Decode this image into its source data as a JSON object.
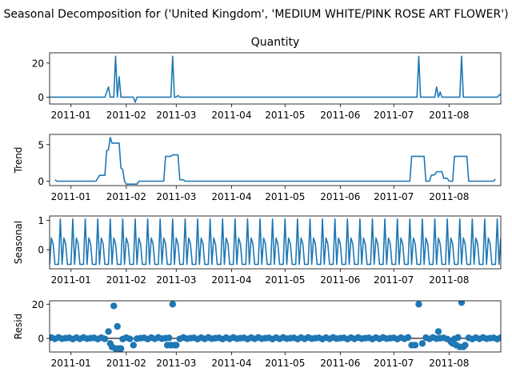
{
  "suptitle": "Seasonal Decomposition for ('United Kingdom', 'MEDIUM WHITE/PINK ROSE ART FLOWER')",
  "colors": {
    "line": "#1f77b4",
    "zero_line": "#000000",
    "frame": "#000000"
  },
  "x_ticks": [
    "2011-01",
    "2011-02",
    "2011-03",
    "2011-04",
    "2011-05",
    "2011-06",
    "2011-07",
    "2011-08"
  ],
  "chart_data": [
    {
      "type": "line",
      "title": "Quantity",
      "ylabel": "",
      "x_range": [
        "2010-12-20",
        "2011-08-30"
      ],
      "ylim": [
        -4,
        26
      ],
      "yticks": [
        "0",
        "20"
      ],
      "series": [
        {
          "values": [
            [
              "2010-12-20",
              0
            ],
            [
              "2011-01-20",
              0
            ],
            [
              "2011-01-22",
              6
            ],
            [
              "2011-01-23",
              0
            ],
            [
              "2011-01-25",
              0
            ],
            [
              "2011-01-26",
              24
            ],
            [
              "2011-01-27",
              0
            ],
            [
              "2011-01-28",
              12
            ],
            [
              "2011-01-29",
              0
            ],
            [
              "2011-02-05",
              0
            ],
            [
              "2011-02-06",
              -3
            ],
            [
              "2011-02-07",
              0
            ],
            [
              "2011-02-26",
              0
            ],
            [
              "2011-02-27",
              24
            ],
            [
              "2011-02-28",
              0
            ],
            [
              "2011-03-01",
              0
            ],
            [
              "2011-03-02",
              1
            ],
            [
              "2011-03-03",
              0
            ],
            [
              "2011-07-14",
              0
            ],
            [
              "2011-07-15",
              24
            ],
            [
              "2011-07-16",
              0
            ],
            [
              "2011-07-24",
              0
            ],
            [
              "2011-07-25",
              6
            ],
            [
              "2011-07-26",
              0
            ],
            [
              "2011-07-27",
              3
            ],
            [
              "2011-07-28",
              0
            ],
            [
              "2011-08-07",
              0
            ],
            [
              "2011-08-08",
              24
            ],
            [
              "2011-08-09",
              0
            ],
            [
              "2011-08-28",
              0
            ],
            [
              "2011-08-30",
              2
            ]
          ]
        }
      ]
    },
    {
      "type": "line",
      "title": "",
      "ylabel": "Trend",
      "x_range": [
        "2010-12-20",
        "2011-08-30"
      ],
      "ylim": [
        -0.6,
        6.4
      ],
      "yticks": [
        "0",
        "5"
      ],
      "series": [
        {
          "values": [
            [
              "2010-12-23",
              0.2
            ],
            [
              "2010-12-24",
              0
            ],
            [
              "2011-01-15",
              0
            ],
            [
              "2011-01-17",
              0.8
            ],
            [
              "2011-01-20",
              0.8
            ],
            [
              "2011-01-21",
              4.2
            ],
            [
              "2011-01-22",
              4.3
            ],
            [
              "2011-01-23",
              6
            ],
            [
              "2011-01-24",
              5.2
            ],
            [
              "2011-01-28",
              5.2
            ],
            [
              "2011-01-29",
              1.8
            ],
            [
              "2011-01-30",
              1.6
            ],
            [
              "2011-01-31",
              0
            ],
            [
              "2011-02-01",
              -0.4
            ],
            [
              "2011-02-07",
              -0.4
            ],
            [
              "2011-02-08",
              0
            ],
            [
              "2011-02-22",
              0
            ],
            [
              "2011-02-23",
              3.4
            ],
            [
              "2011-02-26",
              3.4
            ],
            [
              "2011-02-27",
              3.6
            ],
            [
              "2011-03-02",
              3.6
            ],
            [
              "2011-03-03",
              0.2
            ],
            [
              "2011-03-05",
              0.2
            ],
            [
              "2011-03-06",
              0
            ],
            [
              "2011-07-10",
              0
            ],
            [
              "2011-07-11",
              3.4
            ],
            [
              "2011-07-18",
              3.4
            ],
            [
              "2011-07-19",
              0
            ],
            [
              "2011-07-21",
              0
            ],
            [
              "2011-07-22",
              0.8
            ],
            [
              "2011-07-24",
              0.9
            ],
            [
              "2011-07-25",
              1.3
            ],
            [
              "2011-07-28",
              1.3
            ],
            [
              "2011-07-29",
              0.4
            ],
            [
              "2011-07-31",
              0.4
            ],
            [
              "2011-08-01",
              0
            ],
            [
              "2011-08-03",
              0
            ],
            [
              "2011-08-04",
              3.4
            ],
            [
              "2011-08-11",
              3.4
            ],
            [
              "2011-08-12",
              0
            ],
            [
              "2011-08-26",
              0
            ],
            [
              "2011-08-27",
              0.3
            ]
          ]
        }
      ]
    },
    {
      "type": "line",
      "title": "",
      "ylabel": "Seasonal",
      "x_range": [
        "2010-12-20",
        "2011-08-30"
      ],
      "ylim": [
        -0.65,
        1.15
      ],
      "yticks": [
        "0",
        "1"
      ],
      "period_days": 7,
      "pattern": [
        -0.5,
        0.4,
        0.2,
        -0.5,
        -0.5,
        -0.5,
        1.05
      ],
      "pattern_start": "2010-12-20",
      "series": [
        {
          "values": []
        }
      ]
    },
    {
      "type": "scatter",
      "title": "",
      "ylabel": "Resid",
      "x_range": [
        "2010-12-20",
        "2011-08-30"
      ],
      "ylim": [
        -8,
        22
      ],
      "yticks": [
        "0",
        "20"
      ],
      "zero_line": true,
      "outliers": [
        [
          "2011-01-22",
          4
        ],
        [
          "2011-01-23",
          -3
        ],
        [
          "2011-01-24",
          -5
        ],
        [
          "2011-01-25",
          19
        ],
        [
          "2011-01-26",
          -6
        ],
        [
          "2011-01-27",
          7
        ],
        [
          "2011-01-28",
          -6
        ],
        [
          "2011-01-29",
          -6
        ],
        [
          "2011-02-05",
          -4
        ],
        [
          "2011-02-24",
          -4
        ],
        [
          "2011-02-26",
          -4
        ],
        [
          "2011-02-27",
          20
        ],
        [
          "2011-02-28",
          -4
        ],
        [
          "2011-03-01",
          -4
        ],
        [
          "2011-07-11",
          -4
        ],
        [
          "2011-07-13",
          -4
        ],
        [
          "2011-07-15",
          20
        ],
        [
          "2011-07-17",
          -3
        ],
        [
          "2011-07-26",
          4
        ],
        [
          "2011-08-02",
          -2
        ],
        [
          "2011-08-03",
          -3
        ],
        [
          "2011-08-05",
          -4
        ],
        [
          "2011-08-07",
          -5
        ],
        [
          "2011-08-08",
          21
        ],
        [
          "2011-08-09",
          -5
        ],
        [
          "2011-08-10",
          -4
        ]
      ],
      "baseline": {
        "from": "2010-12-21",
        "to": "2011-08-30",
        "step_days": 2,
        "values": [
          0.4,
          -0.3,
          0.5,
          -0.2,
          0.1,
          0.3,
          -0.4
        ]
      }
    }
  ]
}
